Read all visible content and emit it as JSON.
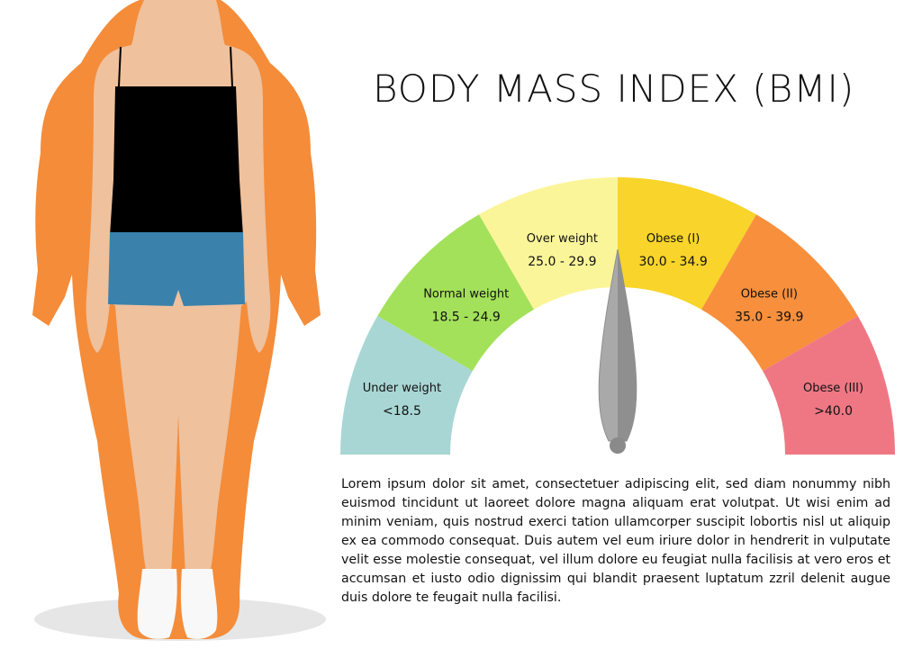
{
  "title": "BODY MASS INDEX (BMI)",
  "categories": [
    {
      "label": "Under weight",
      "range": "<18.5",
      "color": "#a8d6d4"
    },
    {
      "label": "Normal weight",
      "range": "18.5 - 24.9",
      "color": "#a3e15a"
    },
    {
      "label": "Over weight",
      "range": "25.0 - 29.9",
      "color": "#fbf59a"
    },
    {
      "label": "Obese (I)",
      "range": "30.0 - 34.9",
      "color": "#f9d42a"
    },
    {
      "label": "Obese (II)",
      "range": "35.0 - 39.9",
      "color": "#f78f3c"
    },
    {
      "label": "Obese (III)",
      "range": ">40.0",
      "color": "#ef7784"
    }
  ],
  "body_text": "Lorem ipsum dolor sit amet, consectetuer adipiscing elit, sed diam nonummy nibh euismod tincidunt ut laoreet dolore magna aliquam erat volutpat. Ut wisi enim ad minim veniam, quis nostrud exerci tation ullamcorper suscipit lobortis nisl ut aliquip ex ea commodo consequat. Duis autem vel eum iriure dolor in hendrerit in vulputate velit esse molestie consequat, vel illum dolore eu feugiat nulla facilisis at vero eros et accumsan et iusto odio dignissim qui blandit praesent luptatum zzril delenit augue duis dolore te feugait nulla facilisi.",
  "colors": {
    "overweight_silhouette": "#f48c3a",
    "skin": "#efc19d",
    "top": "#000000",
    "shorts": "#3a82ac",
    "socks": "#f8f8f8",
    "needle": "#a9a9a9",
    "shadow": "#e6e6e6"
  }
}
